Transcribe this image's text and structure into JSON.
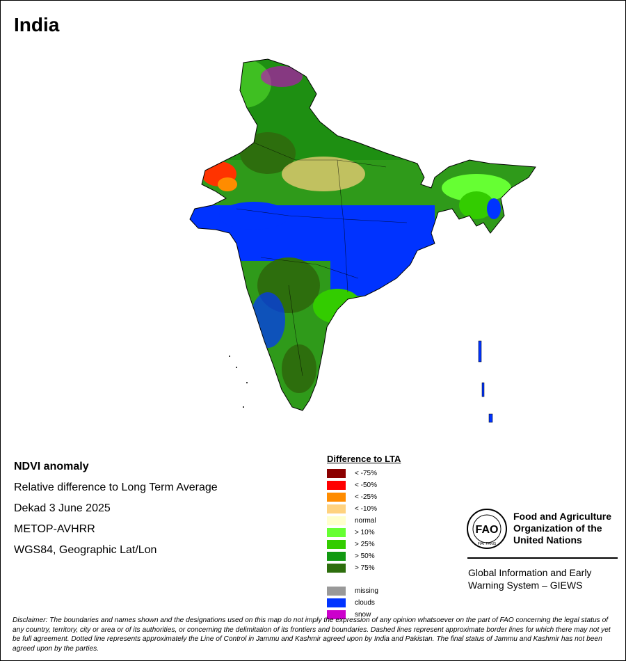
{
  "title": "India",
  "info": {
    "heading": "NDVI anomaly",
    "subtitle": "Relative difference to Long Term Average",
    "period": "Dekad 3 June 2025",
    "sensor": "METOP-AVHRR",
    "projection": "WGS84, Geographic Lat/Lon"
  },
  "legend": {
    "title": "Difference to LTA",
    "items": [
      {
        "label": "< -75%",
        "color": "#8b0000"
      },
      {
        "label": "< -50%",
        "color": "#ff0000"
      },
      {
        "label": "< -25%",
        "color": "#ff8c00"
      },
      {
        "label": "< -10%",
        "color": "#ffd27f"
      },
      {
        "label": "normal",
        "color": "#ffffcc"
      },
      {
        "label": "> 10%",
        "color": "#66ff33"
      },
      {
        "label": "> 25%",
        "color": "#33cc00"
      },
      {
        "label": "> 50%",
        "color": "#119911"
      },
      {
        "label": "> 75%",
        "color": "#2d6e0d"
      }
    ],
    "extra": [
      {
        "label": "missing",
        "color": "#999999"
      },
      {
        "label": "clouds",
        "color": "#0033ff"
      },
      {
        "label": "snow",
        "color": "#cc00cc"
      }
    ]
  },
  "org": {
    "logo_text": "FAO",
    "logo_motto": "FIAT PANIS",
    "name_line1": "Food and Agriculture",
    "name_line2": "Organization of the",
    "name_line3": "United Nations",
    "giews_line1": "Global Information and Early",
    "giews_line2": "Warning System – GIEWS"
  },
  "disclaimer": "Disclaimer: The boundaries and names shown and the designations used on this map do not imply the expression of any opinion whatsoever on the part of FAO concerning the legal status of any country, territory, city or area or of its authorities, or concerning the delimitation of its frontiers and boundaries. Dashed lines represent approximate border lines for which there may not yet be full agreement. Dotted line represents approximately the Line of Control in Jammu and Kashmir agreed upon by India and Pakistan. The final status of Jammu and Kashmir has not been agreed upon by the parties."
}
